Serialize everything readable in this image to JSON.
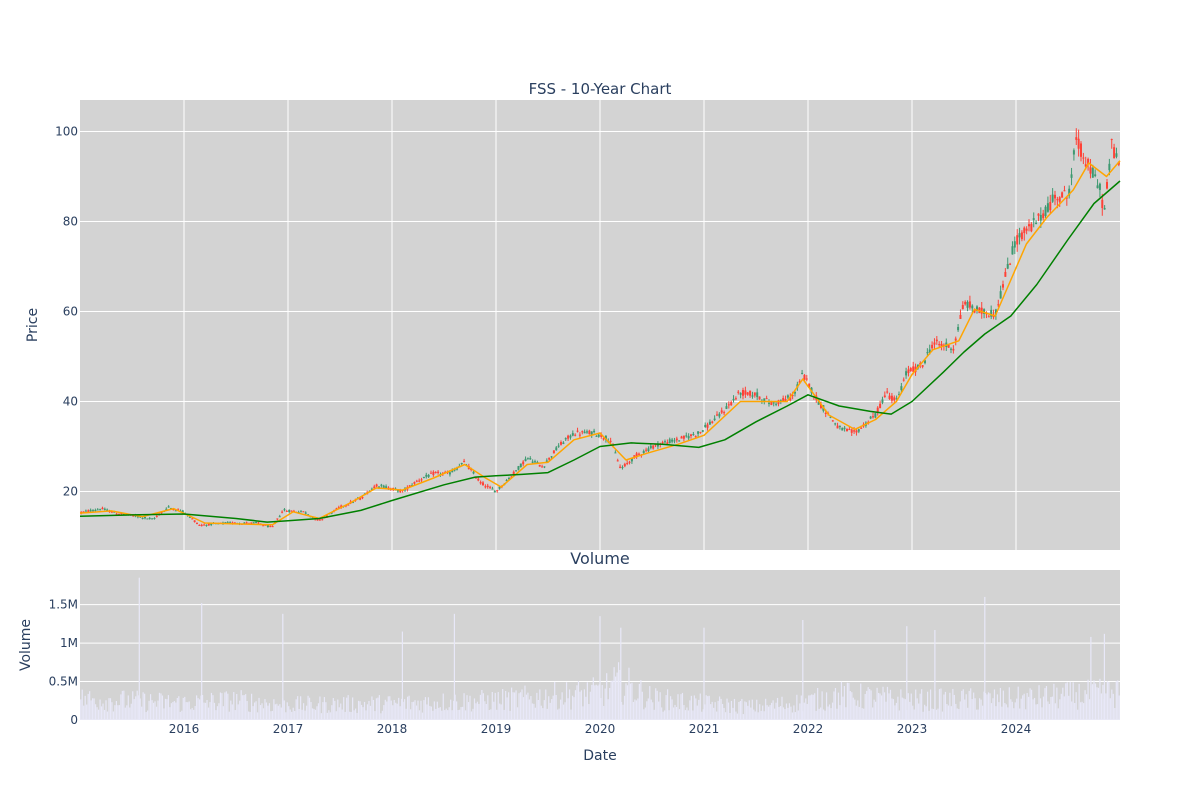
{
  "chart_data": [
    {
      "type": "candlestick",
      "title": "FSS - 10-Year Chart",
      "ylabel": "Price",
      "xlabel": "",
      "ylim": [
        7,
        107
      ],
      "xlim": [
        2015.0,
        2025.0
      ],
      "grid": true,
      "legend": "none",
      "colors": {
        "background": "#d3d3d3",
        "increasing": "#3d9970",
        "decreasing": "#ff4136",
        "ma_short": "#ffa500",
        "ma_long": "#008000",
        "grid": "#ffffff"
      },
      "yticks": [
        20,
        40,
        60,
        80,
        100
      ],
      "xticks": [
        {
          "value": 2016,
          "label": "2016"
        },
        {
          "value": 2017,
          "label": "2017"
        },
        {
          "value": 2018,
          "label": "2018"
        },
        {
          "value": 2019,
          "label": "2019"
        },
        {
          "value": 2020,
          "label": "2020"
        },
        {
          "value": 2021,
          "label": "2021"
        },
        {
          "value": 2022,
          "label": "2022"
        },
        {
          "value": 2023,
          "label": "2023"
        },
        {
          "value": 2024,
          "label": "2024"
        }
      ],
      "price_path": [
        [
          2015.0,
          15.3
        ],
        [
          2015.2,
          16.2
        ],
        [
          2015.35,
          15.2
        ],
        [
          2015.55,
          14.5
        ],
        [
          2015.7,
          13.8
        ],
        [
          2015.85,
          16.5
        ],
        [
          2016.0,
          15.5
        ],
        [
          2016.15,
          12.5
        ],
        [
          2016.4,
          13.0
        ],
        [
          2016.7,
          13.0
        ],
        [
          2016.85,
          12.0
        ],
        [
          2016.95,
          15.8
        ],
        [
          2017.15,
          15.5
        ],
        [
          2017.3,
          13.5
        ],
        [
          2017.5,
          16.5
        ],
        [
          2017.7,
          18.5
        ],
        [
          2017.85,
          21.5
        ],
        [
          2018.1,
          20.0
        ],
        [
          2018.25,
          22.5
        ],
        [
          2018.4,
          24.0
        ],
        [
          2018.55,
          24.0
        ],
        [
          2018.7,
          26.5
        ],
        [
          2018.85,
          22.0
        ],
        [
          2019.0,
          20.0
        ],
        [
          2019.15,
          23.5
        ],
        [
          2019.3,
          27.5
        ],
        [
          2019.45,
          25.5
        ],
        [
          2019.6,
          30.0
        ],
        [
          2019.75,
          33.0
        ],
        [
          2019.95,
          33.0
        ],
        [
          2020.1,
          31.5
        ],
        [
          2020.2,
          25.0
        ],
        [
          2020.35,
          28.0
        ],
        [
          2020.55,
          30.5
        ],
        [
          2020.75,
          31.5
        ],
        [
          2020.95,
          33.0
        ],
        [
          2021.15,
          37.0
        ],
        [
          2021.35,
          42.0
        ],
        [
          2021.5,
          41.5
        ],
        [
          2021.65,
          39.5
        ],
        [
          2021.85,
          41.0
        ],
        [
          2021.95,
          46.0
        ],
        [
          2022.1,
          40.0
        ],
        [
          2022.3,
          34.0
        ],
        [
          2022.45,
          33.0
        ],
        [
          2022.65,
          37.0
        ],
        [
          2022.75,
          42.0
        ],
        [
          2022.85,
          40.0
        ],
        [
          2022.95,
          46.5
        ],
        [
          2023.1,
          48.0
        ],
        [
          2023.2,
          53.0
        ],
        [
          2023.4,
          52.0
        ],
        [
          2023.5,
          62.0
        ],
        [
          2023.65,
          60.0
        ],
        [
          2023.8,
          59.5
        ],
        [
          2023.9,
          68.0
        ],
        [
          2024.0,
          76.0
        ],
        [
          2024.2,
          80.0
        ],
        [
          2024.4,
          86.0
        ],
        [
          2024.5,
          85.5
        ],
        [
          2024.58,
          98.0
        ],
        [
          2024.7,
          92.0
        ],
        [
          2024.8,
          88.0
        ],
        [
          2024.85,
          82.0
        ],
        [
          2024.92,
          97.0
        ],
        [
          2025.0,
          92.5
        ]
      ],
      "ma_short_path": [
        [
          2015.0,
          15.2
        ],
        [
          2015.3,
          15.7
        ],
        [
          2015.6,
          14.4
        ],
        [
          2015.9,
          16.2
        ],
        [
          2016.2,
          13.0
        ],
        [
          2016.5,
          12.8
        ],
        [
          2016.85,
          12.6
        ],
        [
          2017.05,
          15.5
        ],
        [
          2017.3,
          14.0
        ],
        [
          2017.6,
          17.5
        ],
        [
          2017.85,
          20.8
        ],
        [
          2018.1,
          20.3
        ],
        [
          2018.4,
          23.0
        ],
        [
          2018.7,
          26.0
        ],
        [
          2018.9,
          23.0
        ],
        [
          2019.05,
          21.0
        ],
        [
          2019.3,
          26.0
        ],
        [
          2019.5,
          26.5
        ],
        [
          2019.75,
          31.5
        ],
        [
          2020.0,
          33.0
        ],
        [
          2020.25,
          27.0
        ],
        [
          2020.45,
          28.5
        ],
        [
          2020.75,
          30.5
        ],
        [
          2021.0,
          32.5
        ],
        [
          2021.35,
          40.0
        ],
        [
          2021.6,
          40.0
        ],
        [
          2021.8,
          40.0
        ],
        [
          2021.95,
          45.0
        ],
        [
          2022.2,
          37.0
        ],
        [
          2022.45,
          33.8
        ],
        [
          2022.65,
          36.0
        ],
        [
          2022.85,
          40.0
        ],
        [
          2023.0,
          46.0
        ],
        [
          2023.2,
          51.5
        ],
        [
          2023.45,
          53.5
        ],
        [
          2023.6,
          60.5
        ],
        [
          2023.8,
          59.0
        ],
        [
          2023.95,
          67.0
        ],
        [
          2024.1,
          75.0
        ],
        [
          2024.3,
          81.0
        ],
        [
          2024.55,
          87.0
        ],
        [
          2024.7,
          93.0
        ],
        [
          2024.87,
          90.0
        ],
        [
          2025.0,
          93.5
        ]
      ],
      "ma_long_path": [
        [
          2015.0,
          14.5
        ],
        [
          2015.5,
          14.8
        ],
        [
          2016.0,
          15.0
        ],
        [
          2016.5,
          14.0
        ],
        [
          2016.8,
          13.2
        ],
        [
          2017.0,
          13.5
        ],
        [
          2017.3,
          14.0
        ],
        [
          2017.7,
          15.8
        ],
        [
          2018.0,
          18.0
        ],
        [
          2018.5,
          21.5
        ],
        [
          2018.8,
          23.2
        ],
        [
          2019.0,
          23.5
        ],
        [
          2019.25,
          23.8
        ],
        [
          2019.5,
          24.2
        ],
        [
          2019.75,
          27.0
        ],
        [
          2020.0,
          30.0
        ],
        [
          2020.3,
          30.8
        ],
        [
          2020.6,
          30.5
        ],
        [
          2020.95,
          29.8
        ],
        [
          2021.2,
          31.5
        ],
        [
          2021.5,
          35.5
        ],
        [
          2021.8,
          39.0
        ],
        [
          2022.0,
          41.5
        ],
        [
          2022.3,
          39.0
        ],
        [
          2022.6,
          37.8
        ],
        [
          2022.8,
          37.2
        ],
        [
          2023.0,
          40.0
        ],
        [
          2023.3,
          46.5
        ],
        [
          2023.5,
          51.0
        ],
        [
          2023.7,
          55.0
        ],
        [
          2023.95,
          59.0
        ],
        [
          2024.2,
          66.0
        ],
        [
          2024.5,
          76.0
        ],
        [
          2024.75,
          84.0
        ],
        [
          2025.0,
          89.0
        ]
      ]
    },
    {
      "type": "bar",
      "title": "Volume",
      "ylabel": "Volume",
      "xlabel": "Date",
      "ylim": [
        0,
        1950000
      ],
      "xlim": [
        2015.0,
        2025.0
      ],
      "grid": true,
      "colors": {
        "background": "#d3d3d3",
        "bars": "#e8e8f8",
        "grid": "#ffffff"
      },
      "yticks": [
        {
          "value": 0,
          "label": "0"
        },
        {
          "value": 500000,
          "label": "0.5M"
        },
        {
          "value": 1000000,
          "label": "1M"
        },
        {
          "value": 1500000,
          "label": "1.5M"
        }
      ],
      "xticks": [
        {
          "value": 2016,
          "label": "2016"
        },
        {
          "value": 2017,
          "label": "2017"
        },
        {
          "value": 2018,
          "label": "2018"
        },
        {
          "value": 2019,
          "label": "2019"
        },
        {
          "value": 2020,
          "label": "2020"
        },
        {
          "value": 2021,
          "label": "2021"
        },
        {
          "value": 2022,
          "label": "2022"
        },
        {
          "value": 2023,
          "label": "2023"
        },
        {
          "value": 2024,
          "label": "2024"
        }
      ],
      "base_level": [
        [
          2015.0,
          320000
        ],
        [
          2016.0,
          260000
        ],
        [
          2016.5,
          300000
        ],
        [
          2017.0,
          230000
        ],
        [
          2018.0,
          250000
        ],
        [
          2019.0,
          300000
        ],
        [
          2020.0,
          420000
        ],
        [
          2020.2,
          580000
        ],
        [
          2020.5,
          320000
        ],
        [
          2021.0,
          250000
        ],
        [
          2021.5,
          200000
        ],
        [
          2022.0,
          280000
        ],
        [
          2022.3,
          380000
        ],
        [
          2023.0,
          300000
        ],
        [
          2024.0,
          320000
        ],
        [
          2025.0,
          420000
        ]
      ],
      "spikes": [
        [
          2015.57,
          1850000
        ],
        [
          2016.17,
          1520000
        ],
        [
          2016.95,
          1380000
        ],
        [
          2018.1,
          1150000
        ],
        [
          2018.6,
          1380000
        ],
        [
          2020.0,
          1350000
        ],
        [
          2020.2,
          1200000
        ],
        [
          2021.0,
          1200000
        ],
        [
          2021.95,
          1300000
        ],
        [
          2022.95,
          1220000
        ],
        [
          2023.22,
          1170000
        ],
        [
          2023.7,
          1600000
        ],
        [
          2024.72,
          1080000
        ],
        [
          2024.85,
          1120000
        ]
      ]
    }
  ]
}
